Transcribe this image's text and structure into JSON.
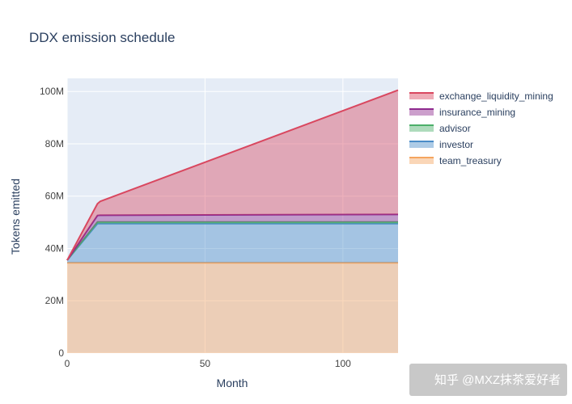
{
  "chart_data": {
    "type": "area",
    "title": "DDX emission schedule",
    "xlabel": "Month",
    "ylabel": "Tokens emitted",
    "xlim": [
      0,
      120
    ],
    "ylim": [
      0,
      105000000
    ],
    "x_ticks": [
      0,
      50,
      100
    ],
    "x_tick_labels": [
      "0",
      "50",
      "100"
    ],
    "y_ticks": [
      0,
      20000000,
      40000000,
      60000000,
      80000000,
      100000000
    ],
    "y_tick_labels": [
      "0",
      "20M",
      "40M",
      "60M",
      "80M",
      "100M"
    ],
    "grid": true,
    "stacked": true,
    "legend_position": "top-right",
    "x": [
      0,
      11,
      12,
      120
    ],
    "series": [
      {
        "name": "team_treasury",
        "color": "#F5A55F",
        "values": [
          34500000,
          34500000,
          34500000,
          34500000
        ]
      },
      {
        "name": "investor",
        "color": "#4A8CC7",
        "values": [
          1000000,
          15000000,
          15000000,
          15000000
        ]
      },
      {
        "name": "advisor",
        "color": "#4CAF6A",
        "values": [
          0,
          600000,
          600000,
          600000
        ]
      },
      {
        "name": "insurance_mining",
        "color": "#8E2A8E",
        "values": [
          0,
          2500000,
          2600000,
          2900000
        ]
      },
      {
        "name": "exchange_liquidity_mining",
        "color": "#D9475F",
        "values": [
          0,
          4500000,
          5300000,
          47500000
        ]
      }
    ],
    "legend_order": [
      "exchange_liquidity_mining",
      "insurance_mining",
      "advisor",
      "investor",
      "team_treasury"
    ]
  },
  "watermark": "知乎 @MXZ抹茶爱好者"
}
